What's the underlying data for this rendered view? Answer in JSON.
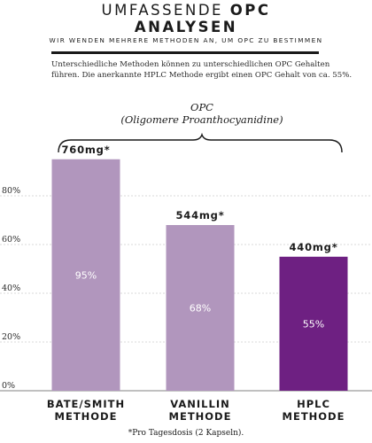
{
  "header": {
    "title_light": "UMFASSENDE",
    "title_bold": "OPC",
    "title_line2": "ANALYSEN",
    "subtitle": "WIR WENDEN MEHRERE METHODEN AN, UM OPC ZU BESTIMMEN",
    "intro_line1": "Unterschiedliche Methoden können zu unterschiedlichen OPC Gehalten",
    "intro_line2": "führen. Die anerkannte HPLC Methode ergibt einen OPC Gehalt von ca. 55%."
  },
  "chart_data": {
    "type": "bar",
    "annotation_title": "OPC",
    "annotation_subtitle": "(Oligomere Proanthocyanidine)",
    "categories": [
      {
        "line1": "BATE/SMITH",
        "line2": "METHODE"
      },
      {
        "line1": "VANILLIN",
        "line2": "METHODE"
      },
      {
        "line1": "HPLC",
        "line2": "METHODE"
      }
    ],
    "values": [
      95,
      68,
      55
    ],
    "value_labels": [
      "95%",
      "68%",
      "55%"
    ],
    "amount_labels": [
      "760mg*",
      "544mg*",
      "440mg*"
    ],
    "bar_colors": [
      "#b196bd",
      "#b196bd",
      "#6e2082"
    ],
    "y_ticks": [
      0,
      20,
      40,
      60,
      80
    ],
    "y_tick_labels": [
      "0%",
      "20%",
      "40%",
      "60%",
      "80%"
    ],
    "ylim": [
      0,
      100
    ],
    "grid": true
  },
  "footnote": "*Pro Tagesdosis (2 Kapseln)."
}
